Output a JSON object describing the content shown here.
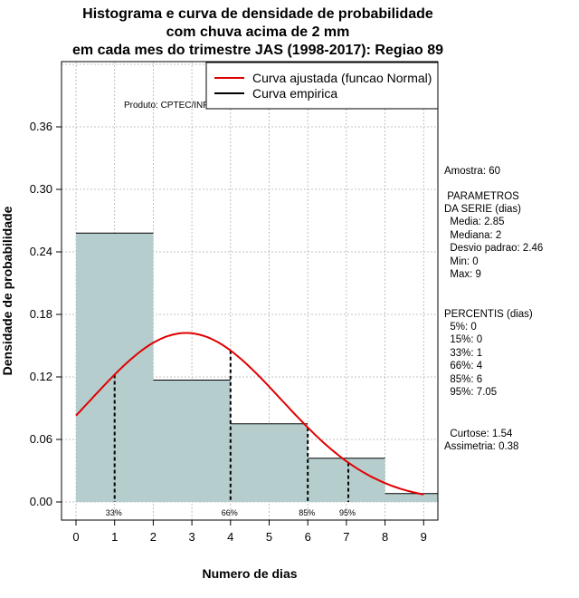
{
  "title_lines": [
    "Histograma e curva de densidade de probabilidade",
    "com chuva acima de 2 mm",
    "em cada mes do trimestre JAS (1998-2017): Regiao 89"
  ],
  "product_label": "Produto: CPTEC/INPE",
  "legend": {
    "fitted": "Curva ajustada (funcao Normal)",
    "empirical": "Curva empirica"
  },
  "colors": {
    "bar_fill": "#b5cdcd",
    "normal_curve": "#e00000",
    "grid": "#b0b0b0"
  },
  "stats": {
    "amostra": "Amostra: 60",
    "params_header_1": " PARAMETROS",
    "params_header_2": "DA SERIE (dias)",
    "media": "  Media: 2.85",
    "mediana": "  Mediana: 2",
    "desvio": "  Desvio padrao: 2.46",
    "min": "  Min: 0",
    "max": "  Max: 9",
    "percentis_header": "PERCENTIS (dias)",
    "p5": "  5%: 0",
    "p15": "  15%: 0",
    "p33": "  33%: 1",
    "p66": "  66%: 4",
    "p85": "  85%: 6",
    "p95": "  95%: 7.05",
    "curtose": "  Curtose: 1.54",
    "assimetria": "Assimetria: 0.38"
  },
  "chart_data": {
    "type": "bar",
    "title": "Histograma e curva de densidade de probabilidade com chuva acima de 2 mm em cada mes do trimestre JAS (1998-2017): Regiao 89",
    "xlabel": "Numero de dias",
    "ylabel": "Densidade de probabilidade",
    "xlim": [
      -0.35,
      9.35
    ],
    "ylim": [
      0,
      0.42
    ],
    "x_ticks": [
      0,
      1,
      2,
      3,
      4,
      5,
      6,
      7,
      8,
      9
    ],
    "y_ticks": [
      0.0,
      0.06,
      0.12,
      0.18,
      0.24,
      0.3,
      0.36
    ],
    "y_tick_labels": [
      "0.00",
      "0.06",
      "0.12",
      "0.18",
      "0.24",
      "0.30",
      "0.36"
    ],
    "bins": [
      {
        "from": 0,
        "to": 2,
        "density": 0.258
      },
      {
        "from": 2,
        "to": 4,
        "density": 0.117
      },
      {
        "from": 4,
        "to": 6,
        "density": 0.075
      },
      {
        "from": 6,
        "to": 8,
        "density": 0.042
      },
      {
        "from": 8,
        "to": 10,
        "density": 0.008
      }
    ],
    "normal_fit": {
      "mean": 2.85,
      "sd": 2.46,
      "x_range": [
        0,
        9
      ]
    },
    "percentile_lines": [
      {
        "x": 1,
        "label": "33%"
      },
      {
        "x": 4,
        "label": "66%"
      },
      {
        "x": 6,
        "label": "85%"
      },
      {
        "x": 7.05,
        "label": "95%"
      }
    ],
    "grid": true,
    "legend_position": "top-right"
  }
}
